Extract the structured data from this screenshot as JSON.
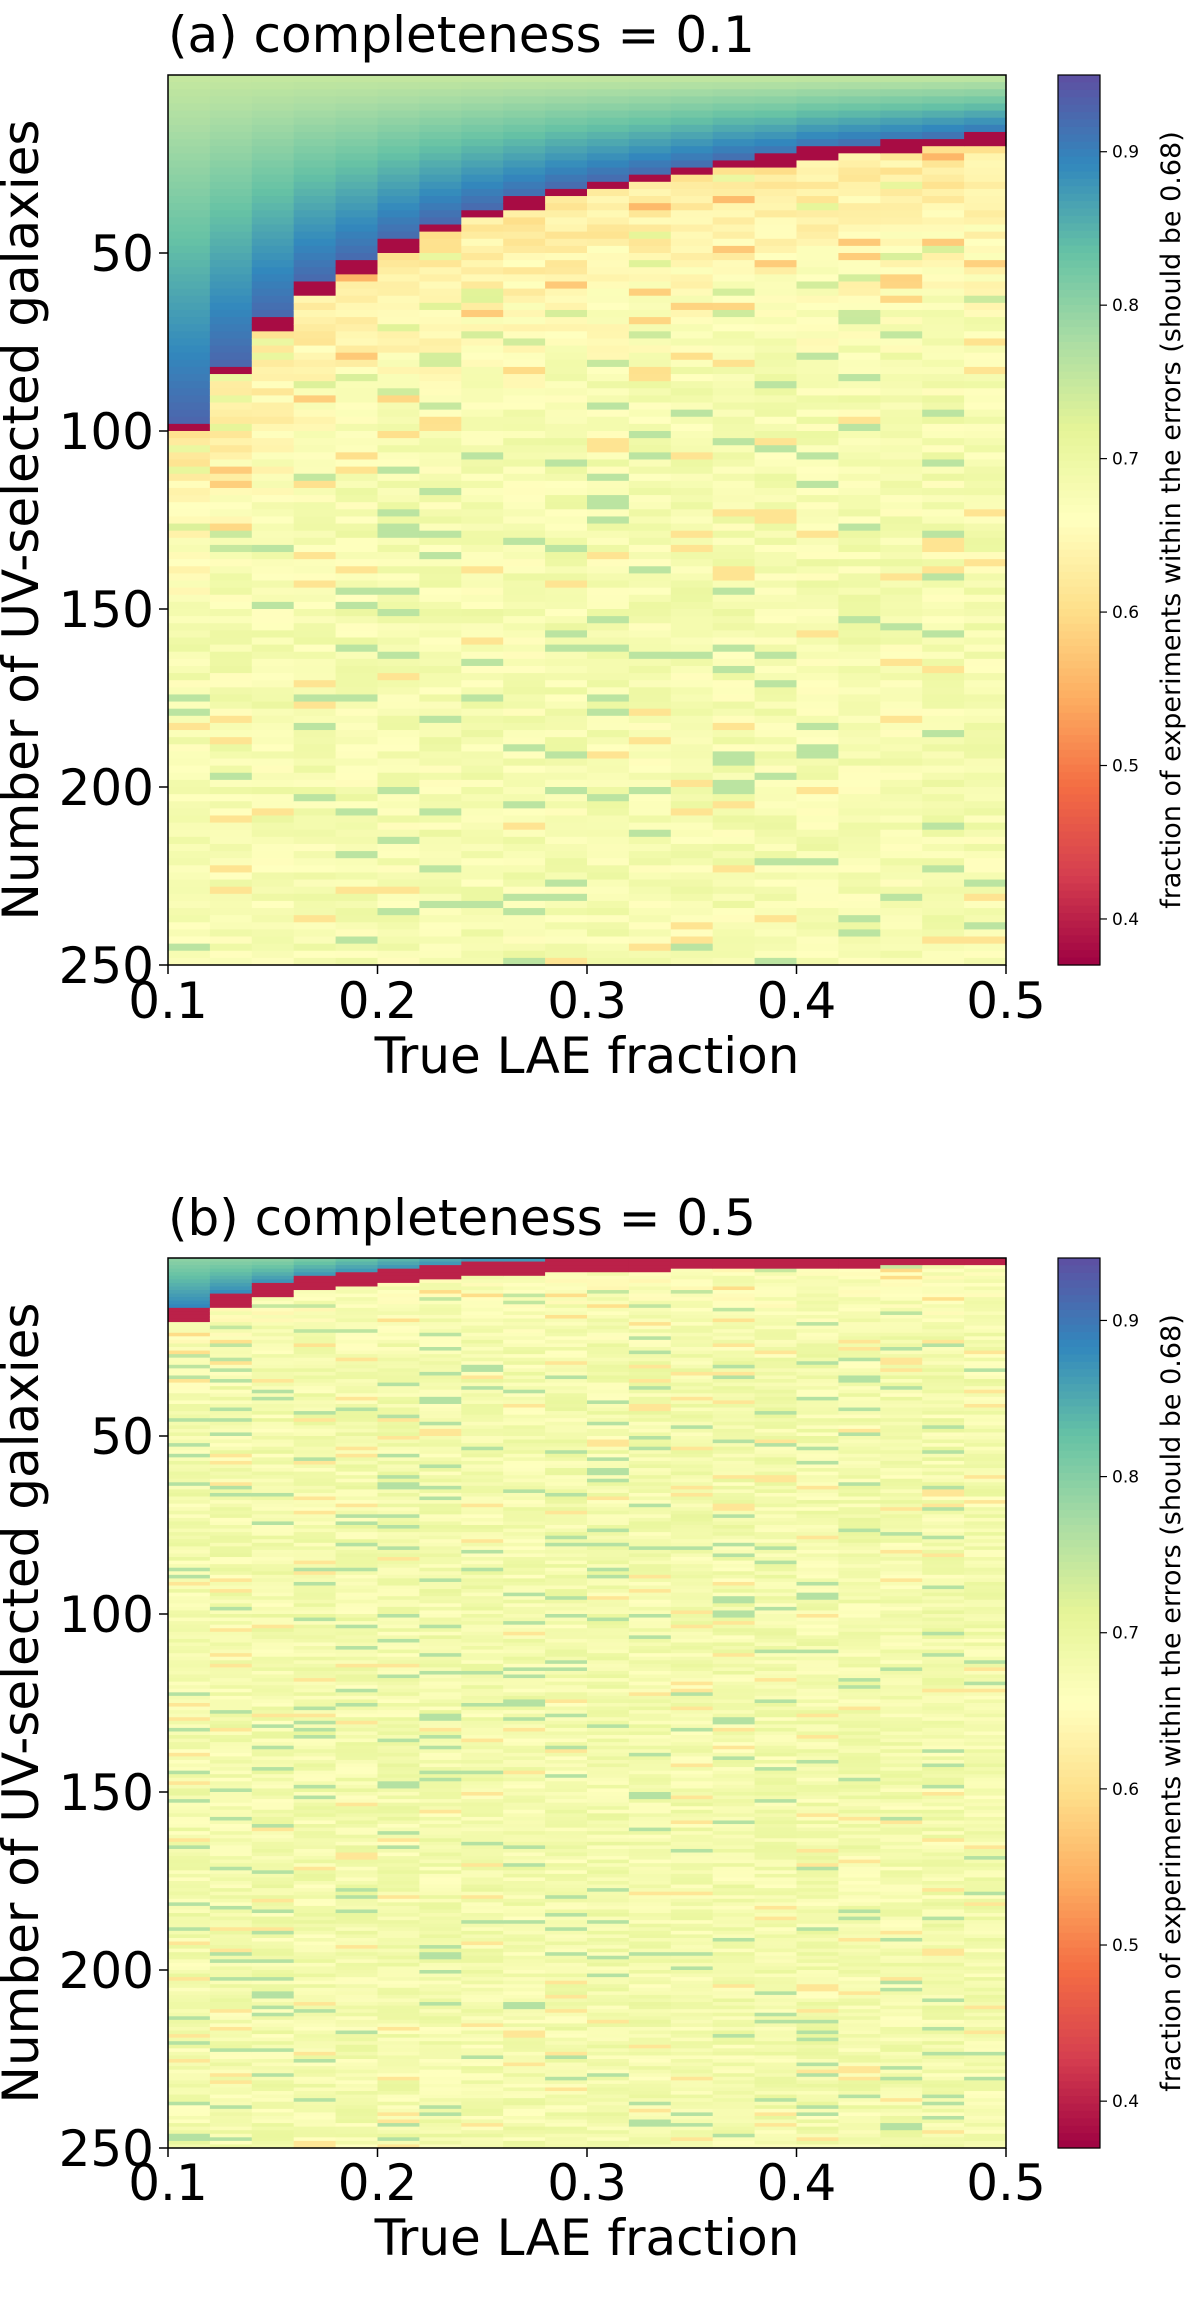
{
  "chart_data": [
    {
      "type": "heatmap",
      "title": "(a) completeness = 0.1",
      "xlabel": "True LAE fraction",
      "ylabel": "Number of UV-selected galaxies",
      "xlim": [
        0.1,
        0.5
      ],
      "ylim": [
        250,
        0
      ],
      "x_ticks": [
        "0.1",
        "0.2",
        "0.3",
        "0.4",
        "0.5"
      ],
      "y_ticks": [
        "50",
        "100",
        "150",
        "200",
        "250"
      ],
      "colorbar": {
        "label": "fraction of experiments within the errors (should be 0.68)",
        "range": [
          0.37,
          0.95
        ],
        "ticks": [
          "0.4",
          "0.5",
          "0.6",
          "0.7",
          "0.8",
          "0.9"
        ],
        "colormap": "Spectral"
      },
      "x_centers": [
        0.11,
        0.13,
        0.15,
        0.17,
        0.19,
        0.21,
        0.23,
        0.25,
        0.27,
        0.29,
        0.31,
        0.33,
        0.35,
        0.37,
        0.39,
        0.41,
        0.43,
        0.45,
        0.47,
        0.49
      ],
      "diagonal_n_at_x": [
        99,
        83,
        70,
        60,
        54,
        48,
        43,
        39,
        36,
        33,
        31,
        29,
        27,
        25,
        24,
        22,
        21,
        20,
        19,
        18
      ],
      "value_above_diagonal": 0.93,
      "value_on_diagonal": 0.38,
      "value_below_diagonal": 0.62,
      "value_far_below": 0.68
    },
    {
      "type": "heatmap",
      "title": "(b) completeness = 0.5",
      "xlabel": "True LAE fraction",
      "ylabel": "Number of UV-selected galaxies",
      "xlim": [
        0.1,
        0.5
      ],
      "ylim": [
        250,
        0
      ],
      "x_ticks": [
        "0.1",
        "0.2",
        "0.3",
        "0.4",
        "0.5"
      ],
      "y_ticks": [
        "50",
        "100",
        "150",
        "200",
        "250"
      ],
      "colorbar": {
        "label": "fraction of experiments within the errors (should be 0.68)",
        "range": [
          0.37,
          0.94
        ],
        "ticks": [
          "0.4",
          "0.5",
          "0.6",
          "0.7",
          "0.8",
          "0.9"
        ],
        "colormap": "Spectral"
      },
      "x_centers": [
        0.11,
        0.13,
        0.15,
        0.17,
        0.19,
        0.21,
        0.23,
        0.25,
        0.27,
        0.29,
        0.31,
        0.33,
        0.35,
        0.37,
        0.39,
        0.41,
        0.43,
        0.45,
        0.47,
        0.49
      ],
      "diagonal_n_at_x": [
        16,
        12,
        9,
        7,
        6,
        5,
        4,
        3,
        3,
        2,
        2,
        2,
        1,
        1,
        1,
        1,
        1,
        0,
        0,
        0
      ],
      "value_above_diagonal": 0.9,
      "value_on_diagonal": 0.4,
      "value_below_diagonal": 0.66,
      "value_far_below": 0.68
    }
  ]
}
